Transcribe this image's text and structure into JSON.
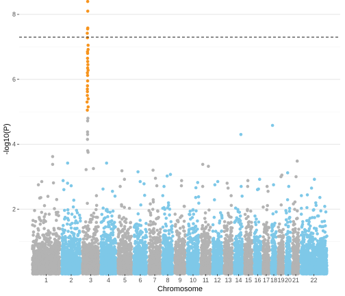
{
  "chart_data": {
    "type": "scatter",
    "subtype": "manhattan",
    "title": "",
    "xlabel": "Chromosome",
    "ylabel": "-log10(P)",
    "ylim": [
      0,
      8.4
    ],
    "y_ticks": [
      2,
      4,
      6,
      8
    ],
    "grid": true,
    "legend": "none",
    "significance_threshold": 7.3,
    "colors": {
      "odd_chromosome": "#b3b3b3",
      "even_chromosome": "#7ec8e8",
      "significant": "#f7941d",
      "threshold_line": "#333333",
      "grid": "#ebebeb",
      "tick_text": "#4d4d4d"
    },
    "chromosomes": [
      {
        "label": "1",
        "top_points": [
          3.62,
          3.38,
          2.85,
          2.81,
          2.75
        ]
      },
      {
        "label": "2",
        "top_points": [
          3.42,
          2.88,
          2.8,
          2.72,
          2.6
        ]
      },
      {
        "label": "3",
        "top_points": [
          8.4,
          8.1,
          7.58,
          7.55,
          7.42,
          7.28,
          7.05,
          6.92,
          6.85,
          6.8,
          6.65,
          6.55,
          6.45,
          6.35,
          6.28,
          6.2,
          6.12,
          5.95,
          5.8,
          5.7,
          5.62,
          5.5,
          5.4,
          5.3,
          5.15,
          5.05,
          4.8,
          4.72,
          4.38,
          4.3,
          4.15,
          3.8,
          3.75,
          3.25,
          3.22
        ]
      },
      {
        "label": "4",
        "top_points": [
          3.42,
          2.62,
          2.55
        ]
      },
      {
        "label": "5",
        "top_points": [
          3.18,
          2.92,
          2.7
        ]
      },
      {
        "label": "6",
        "top_points": [
          3.15,
          2.85,
          2.78
        ]
      },
      {
        "label": "7",
        "top_points": [
          3.2,
          2.95,
          2.72
        ]
      },
      {
        "label": "8",
        "top_points": [
          3.07,
          3.02,
          2.7
        ]
      },
      {
        "label": "9",
        "top_points": [
          2.88,
          2.72
        ]
      },
      {
        "label": "10",
        "top_points": [
          2.82,
          2.66
        ]
      },
      {
        "label": "11",
        "top_points": [
          3.38,
          3.32,
          2.7
        ]
      },
      {
        "label": "12",
        "top_points": [
          2.85,
          2.75
        ]
      },
      {
        "label": "13",
        "top_points": [
          2.8,
          2.65
        ]
      },
      {
        "label": "14",
        "top_points": [
          4.3,
          2.7
        ]
      },
      {
        "label": "15",
        "top_points": [
          2.88,
          2.7
        ]
      },
      {
        "label": "16",
        "top_points": [
          2.92,
          2.62,
          2.6
        ]
      },
      {
        "label": "17",
        "top_points": [
          2.7,
          2.55
        ]
      },
      {
        "label": "18",
        "top_points": [
          4.58,
          2.75
        ]
      },
      {
        "label": "19",
        "top_points": [
          3.05,
          3.0
        ]
      },
      {
        "label": "20",
        "top_points": [
          3.12,
          2.7
        ]
      },
      {
        "label": "21",
        "top_points": [
          3.48,
          3.0
        ]
      },
      {
        "label": "22",
        "top_points": [
          2.92,
          2.65
        ]
      }
    ]
  }
}
